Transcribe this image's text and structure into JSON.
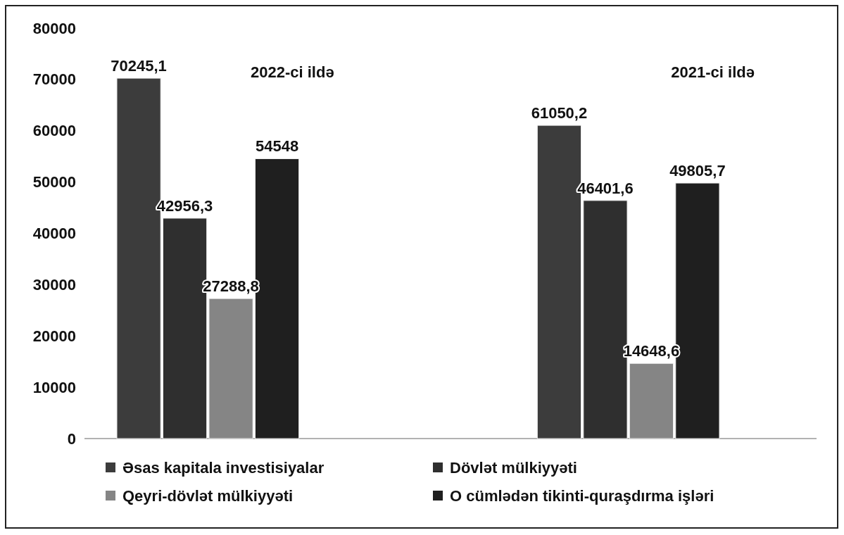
{
  "chart_data": {
    "type": "bar",
    "categories": [
      "2022-ci ildə",
      "2021-ci ildə"
    ],
    "series": [
      {
        "name": "Əsas kapitala investisiyalar",
        "color": "#3c3c3c",
        "values": [
          70245.1,
          61050.2
        ],
        "value_labels": [
          "70245,1",
          "61050,2"
        ]
      },
      {
        "name": "Dövlət mülkiyyəti",
        "color": "#2f2f2f",
        "values": [
          42956.3,
          46401.6
        ],
        "value_labels": [
          "42956,3",
          "46401,6"
        ]
      },
      {
        "name": "Qeyri-dövlət mülkiyyəti",
        "color": "#858585",
        "values": [
          27288.8,
          14648.6
        ],
        "value_labels": [
          "27288,8",
          "14648,6"
        ]
      },
      {
        "name": "O cümlədən tikinti-quraşdırma işləri",
        "color": "#1f1f1f",
        "values": [
          54548,
          49805.7
        ],
        "value_labels": [
          "54548",
          "49805,7"
        ]
      }
    ],
    "ylim": [
      0,
      80000
    ],
    "yticks": [
      0,
      10000,
      20000,
      30000,
      40000,
      50000,
      60000,
      70000,
      80000
    ],
    "grid": false,
    "legend": "bottom"
  }
}
